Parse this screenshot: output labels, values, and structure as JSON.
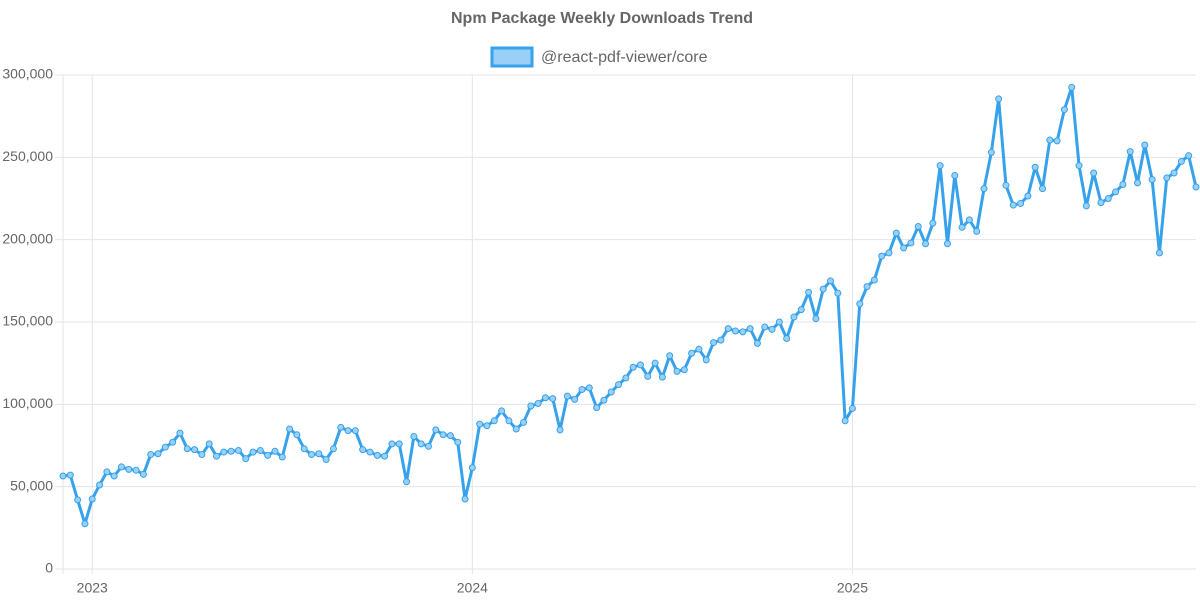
{
  "chart_data": {
    "type": "line",
    "title": "Npm Package Weekly Downloads Trend",
    "categories": [
      null,
      null,
      null,
      null,
      "2023",
      null,
      null,
      null,
      null,
      null,
      null,
      null,
      null,
      null,
      null,
      null,
      null,
      null,
      null,
      null,
      null,
      null,
      null,
      null,
      null,
      null,
      null,
      null,
      null,
      null,
      null,
      null,
      null,
      null,
      null,
      null,
      null,
      null,
      null,
      null,
      null,
      null,
      null,
      null,
      null,
      null,
      null,
      null,
      null,
      null,
      null,
      null,
      null,
      null,
      null,
      null,
      "2024",
      null,
      null,
      null,
      null,
      null,
      null,
      null,
      null,
      null,
      null,
      null,
      null,
      null,
      null,
      null,
      null,
      null,
      null,
      null,
      null,
      null,
      null,
      null,
      null,
      null,
      null,
      null,
      null,
      null,
      null,
      null,
      null,
      null,
      null,
      null,
      null,
      null,
      null,
      null,
      null,
      null,
      null,
      null,
      null,
      null,
      null,
      null,
      null,
      null,
      null,
      null,
      "2025",
      null,
      null,
      null,
      null,
      null,
      null,
      null,
      null,
      null,
      null,
      null,
      null,
      null,
      null,
      null,
      null,
      null,
      null,
      null,
      null,
      null,
      null,
      null,
      null,
      null,
      null,
      null,
      null,
      null,
      null,
      null,
      null,
      null,
      null,
      null,
      null,
      null,
      null,
      null,
      null,
      null,
      null,
      null,
      null,
      null,
      null,
      null
    ],
    "series": [
      {
        "name": "@react-pdf-viewer/core",
        "color": "#36a2eb",
        "fill": "#9ad0f5",
        "values": [
          56500,
          57000,
          42000,
          27500,
          42500,
          51000,
          59000,
          56500,
          62000,
          60500,
          60000,
          57500,
          69500,
          70000,
          74000,
          77000,
          82500,
          73000,
          72500,
          69500,
          76000,
          68500,
          71000,
          71500,
          72000,
          67000,
          71000,
          72000,
          69000,
          71500,
          68000,
          85000,
          81500,
          73000,
          69500,
          70000,
          66500,
          73000,
          86000,
          84000,
          84000,
          72500,
          71000,
          69000,
          68500,
          76000,
          76000,
          53000,
          80500,
          76000,
          74500,
          84500,
          81500,
          81000,
          77000,
          42500,
          61500,
          88000,
          87000,
          90000,
          96000,
          90000,
          85000,
          89000,
          99000,
          100500,
          104000,
          103500,
          84500,
          105000,
          103000,
          109000,
          110000,
          98000,
          102500,
          107500,
          112000,
          116000,
          122500,
          124000,
          117000,
          125000,
          116500,
          129500,
          120000,
          121000,
          131000,
          133500,
          127000,
          137500,
          139000,
          146000,
          144500,
          144000,
          146000,
          137000,
          147000,
          145500,
          150000,
          140000,
          153000,
          157500,
          168000,
          152000,
          170000,
          175000,
          167500,
          90000,
          97500,
          161000,
          171500,
          175500,
          190000,
          192000,
          204000,
          195000,
          198000,
          208000,
          197500,
          210000,
          245000,
          197500,
          239000,
          207500,
          212000,
          205000,
          231000,
          253000,
          285500,
          233000,
          221000,
          222000,
          226500,
          244000,
          231000,
          260500,
          260000,
          279000,
          292500,
          245000,
          220500,
          240500,
          222500,
          225000,
          229000,
          233500,
          253500,
          234500,
          257500,
          236500,
          192000,
          237500,
          240500,
          247500,
          251000,
          232000
        ]
      }
    ],
    "ylim": [
      0,
      300000
    ],
    "yticks": [
      0,
      {
        "value": 50000,
        "label": "50,000"
      },
      {
        "value": 100000,
        "label": "100,000"
      },
      {
        "value": 150000,
        "label": "150,000"
      },
      {
        "value": 200000,
        "label": "200,000"
      },
      {
        "value": 250000,
        "label": "250,000"
      },
      {
        "value": 300000,
        "label": "300,000"
      }
    ],
    "grid": true,
    "legend": "top"
  }
}
